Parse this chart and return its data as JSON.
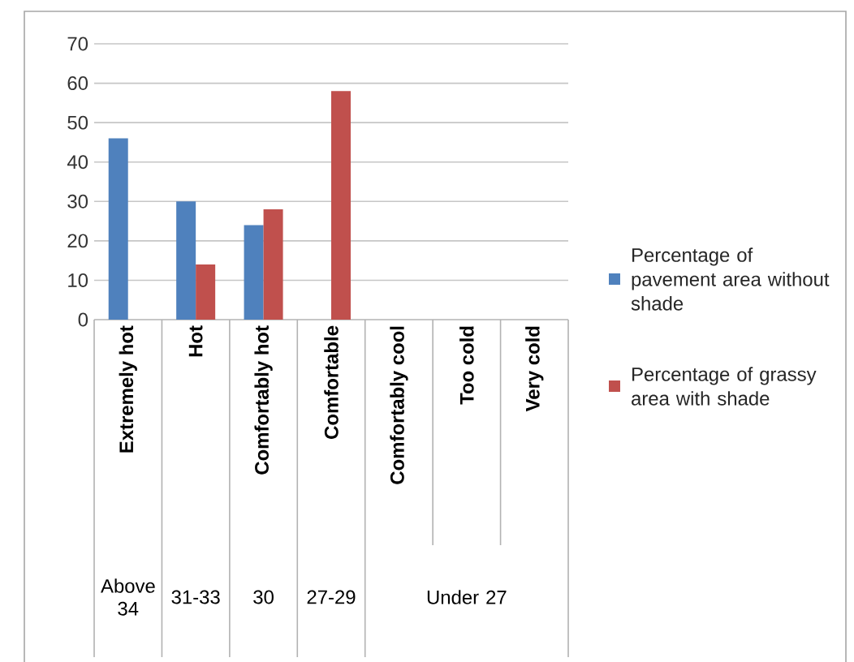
{
  "chart_data": {
    "type": "bar",
    "categories": [
      "Extremely hot",
      "Hot",
      "Comfortably  hot",
      "Comfortable",
      "Comfortably  cool",
      "Too  cold",
      "Very  cold"
    ],
    "series": [
      {
        "name": "Percentage of pavement area without shade",
        "color": "#4f81bd",
        "values": [
          46,
          30,
          24,
          null,
          null,
          null,
          null
        ]
      },
      {
        "name": "Percentage of grassy area with shade",
        "color": "#c0504d",
        "values": [
          null,
          14,
          28,
          58,
          null,
          null,
          null
        ]
      }
    ],
    "annotations": [
      "Above 34",
      "31-33",
      "30",
      "27-29",
      "Under 27"
    ],
    "ylim": [
      0,
      70
    ],
    "yticks": [
      0,
      10,
      20,
      30,
      40,
      50,
      60,
      70
    ],
    "grid": "y",
    "legend": "right"
  }
}
